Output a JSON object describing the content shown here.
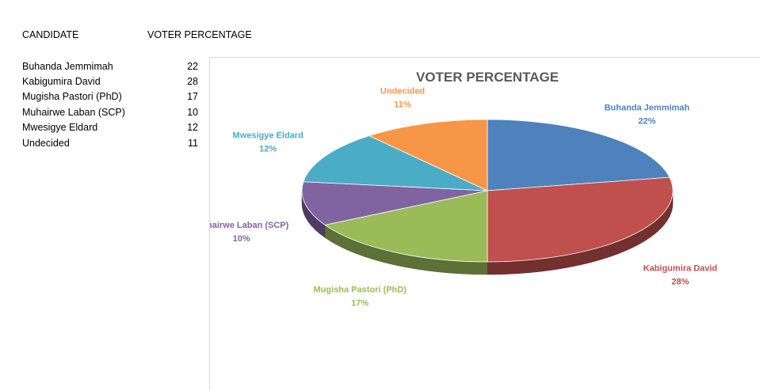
{
  "table": {
    "header_candidate": "CANDIDATE",
    "header_percentage": "VOTER PERCENTAGE",
    "rows": [
      {
        "name": "Buhanda Jemmimah",
        "value": "22"
      },
      {
        "name": "Kabigumira David",
        "value": "28"
      },
      {
        "name": "Mugisha Pastori (PhD)",
        "value": "17"
      },
      {
        "name": "Muhairwe Laban (SCP)",
        "value": "10"
      },
      {
        "name": "Mwesigye Eldard",
        "value": "12"
      },
      {
        "name": "Undecided",
        "value": "11"
      }
    ]
  },
  "chart_data": {
    "type": "pie",
    "title": "VOTER PERCENTAGE",
    "labels": [
      "Buhanda Jemmimah",
      "Kabigumira David",
      "Mugisha Pastori (PhD)",
      "Muhairwe Laban (SCP)",
      "Mwesigye Eldard",
      "Undecided"
    ],
    "values": [
      22,
      28,
      17,
      10,
      12,
      11
    ],
    "data_labels": [
      "22%",
      "28%",
      "17%",
      "10%",
      "12%",
      "11%"
    ],
    "colors": [
      "#4F81BD",
      "#C0504D",
      "#9BBB59",
      "#8064A2",
      "#4BACC6",
      "#F79646"
    ],
    "label_colors": [
      "#4F81BD",
      "#C0504D",
      "#9BBB59",
      "#8064A2",
      "#4BACC6",
      "#F79646"
    ],
    "style": "3d",
    "legend": "none"
  }
}
